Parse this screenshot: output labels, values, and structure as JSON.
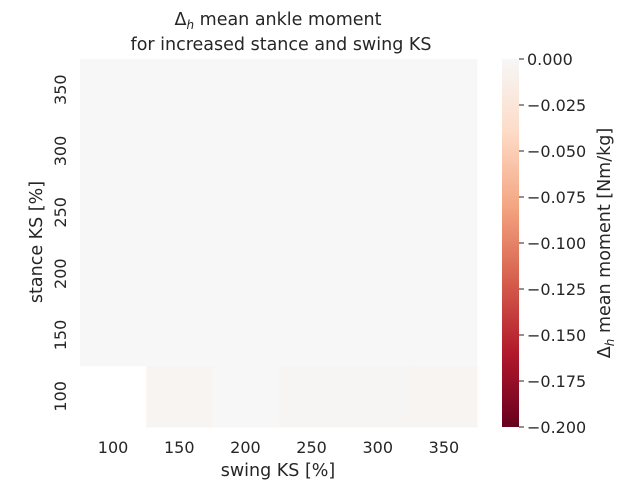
{
  "chart_data": {
    "type": "heatmap",
    "title_prefix": "Δ",
    "title_sub": "h",
    "title_line1_rest": " mean ankle moment",
    "title_line2": "for increased stance and swing KS",
    "xlabel": "swing KS [%]",
    "ylabel": "stance KS [%]",
    "x_categories": [
      "100",
      "150",
      "200",
      "250",
      "300",
      "350"
    ],
    "y_categories": [
      "100",
      "150",
      "200",
      "250",
      "300",
      "350"
    ],
    "values": [
      [
        null,
        -0.004,
        0.0,
        -0.003,
        -0.003,
        -0.005
      ],
      [
        0.0,
        0.0,
        0.0,
        0.0,
        0.0,
        0.0
      ],
      [
        0.0,
        0.0,
        0.0,
        0.0,
        0.0,
        0.0
      ],
      [
        0.0,
        0.0,
        0.0,
        0.0,
        0.0,
        0.0
      ],
      [
        0.0,
        0.0,
        0.0,
        0.0,
        0.0,
        0.0
      ],
      [
        0.0,
        0.0,
        0.0,
        0.0,
        0.0,
        0.0
      ]
    ],
    "colorbar": {
      "label_prefix": "Δ",
      "label_sub": "h",
      "label_rest": " mean moment [Nm/kg]",
      "range": [
        -0.2,
        0.0
      ],
      "ticks": [
        "0.000",
        "−0.025",
        "−0.050",
        "−0.075",
        "−0.100",
        "−0.125",
        "−0.150",
        "−0.175",
        "−0.200"
      ],
      "colormap": "RdBu",
      "colors": [
        "#67001f",
        "#b2182b",
        "#d6604d",
        "#f4a582",
        "#fddbc7",
        "#f7f7f7"
      ]
    }
  }
}
